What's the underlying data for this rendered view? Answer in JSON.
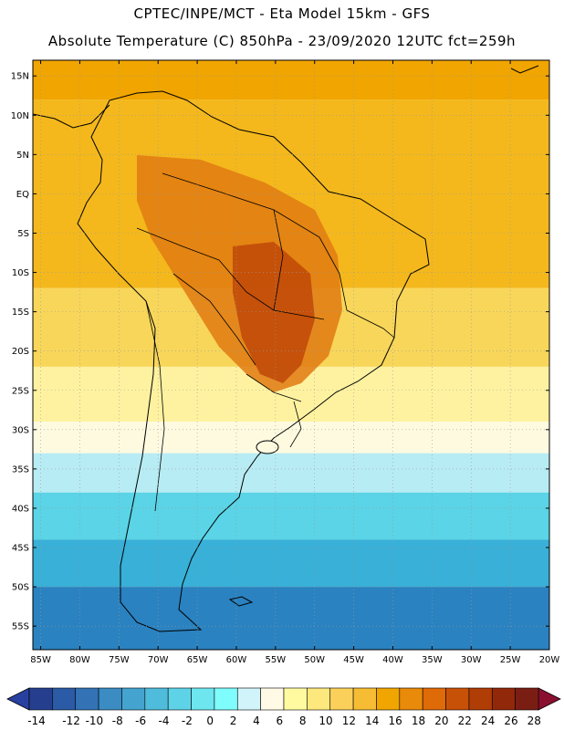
{
  "header": {
    "line1": "CPTEC/INPE/MCT -  Eta Model 15km - GFS",
    "line2": "Absolute Temperature (C) 850hPa - 23/09/2020 12UTC fct=259h"
  },
  "map": {
    "lat_labels": [
      "15N",
      "10N",
      "5N",
      "EQ",
      "5S",
      "10S",
      "15S",
      "20S",
      "25S",
      "30S",
      "35S",
      "40S",
      "45S",
      "50S",
      "55S"
    ],
    "lat_values": [
      15,
      10,
      5,
      0,
      -5,
      -10,
      -15,
      -20,
      -25,
      -30,
      -35,
      -40,
      -45,
      -50,
      -55
    ],
    "lon_labels": [
      "85W",
      "80W",
      "75W",
      "70W",
      "65W",
      "60W",
      "55W",
      "50W",
      "45W",
      "40W",
      "35W",
      "30W",
      "25W",
      "20W"
    ],
    "lon_values": [
      -85,
      -80,
      -75,
      -70,
      -65,
      -60,
      -55,
      -50,
      -45,
      -40,
      -35,
      -30,
      -25,
      -20
    ],
    "lat_range": [
      -58,
      17
    ],
    "lon_range": [
      -86,
      -20
    ],
    "field_bands": [
      {
        "lat_top": 17,
        "lat_bottom": 12,
        "color": "#f0a500"
      },
      {
        "lat_top": 12,
        "lat_bottom": -12,
        "color": "#f4b81c"
      },
      {
        "lat_top": -12,
        "lat_bottom": -22,
        "color": "#f8d65a"
      },
      {
        "lat_top": -22,
        "lat_bottom": -29,
        "color": "#fef2a0"
      },
      {
        "lat_top": -29,
        "lat_bottom": -33,
        "color": "#fefae0"
      },
      {
        "lat_top": -33,
        "lat_bottom": -38,
        "color": "#b8ecf4"
      },
      {
        "lat_top": -38,
        "lat_bottom": -44,
        "color": "#5ad4e6"
      },
      {
        "lat_top": -44,
        "lat_bottom": -50,
        "color": "#38b0d8"
      },
      {
        "lat_top": -50,
        "lat_bottom": -58,
        "color": "#2a82c0"
      }
    ],
    "warm_core_color": "#c04808",
    "land_warm_color": "#e07a10"
  },
  "colorbar": {
    "labels": [
      "-14",
      "-12",
      "-10",
      "-8",
      "-6",
      "-4",
      "-2",
      "0",
      "2",
      "4",
      "6",
      "8",
      "10",
      "12",
      "14",
      "16",
      "18",
      "20",
      "22",
      "24",
      "26",
      "28"
    ],
    "colors": [
      "#253f8e",
      "#2b5aa6",
      "#3372b5",
      "#3b8cc3",
      "#45a4cf",
      "#4fbcdc",
      "#5ed3e8",
      "#6ee6f0",
      "#7ffcfc",
      "#d0f4fa",
      "#fffae6",
      "#fffaa0",
      "#fde87e",
      "#fad05a",
      "#f6bc34",
      "#f0a500",
      "#e98a0a",
      "#df6a08",
      "#c85108",
      "#b03c06",
      "#92280a",
      "#7a1e14"
    ],
    "low_arrow_color": "#2840a0",
    "high_arrow_color": "#8a1030"
  }
}
